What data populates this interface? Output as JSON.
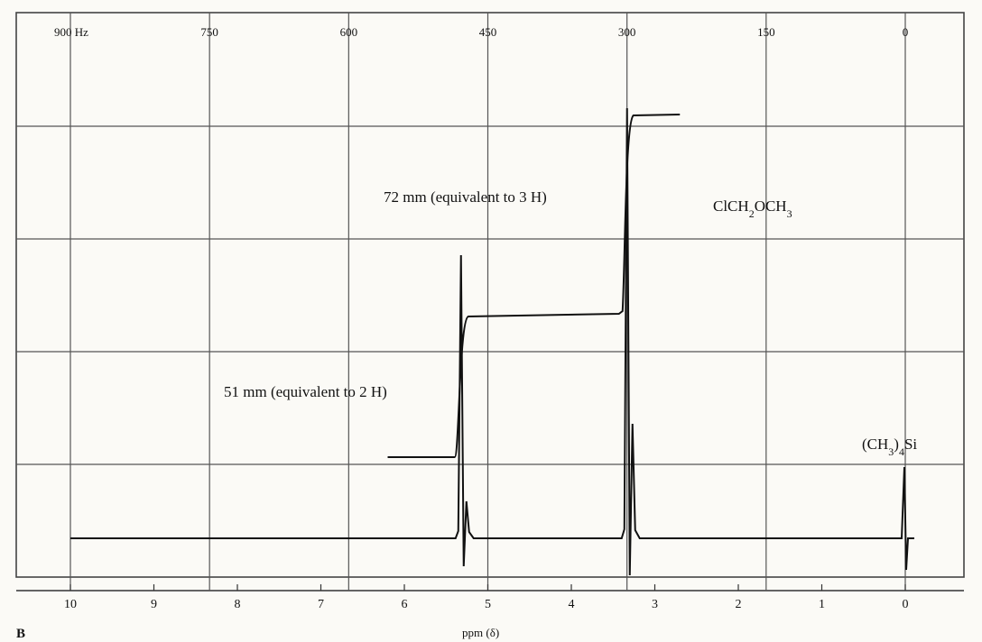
{
  "chart_data": {
    "type": "line",
    "panel_label": "B",
    "xlabel": "ppm (δ)",
    "xlim": [
      10,
      0
    ],
    "x_ticks_ppm": [
      "10",
      "9",
      "8",
      "7",
      "6",
      "5",
      "4",
      "3",
      "2",
      "1",
      "0"
    ],
    "x_ticks_hz": [
      "900 Hz",
      "750",
      "600",
      "450",
      "300",
      "150",
      "0"
    ],
    "grid": true,
    "peaks": [
      {
        "ppm": 5.3,
        "label": "51 mm (equivalent to 2 H)",
        "integral_mm": 51,
        "protons": 2
      },
      {
        "ppm": 3.3,
        "label": "72 mm (equivalent to 3 H)",
        "integral_mm": 72,
        "protons": 3
      },
      {
        "ppm": 0.0,
        "label": "(CH3)4Si"
      }
    ],
    "compound": "ClCH2OCH3",
    "integral_trace": {
      "start_ppm": 6.2,
      "end_ppm": 2.7,
      "step_heights_mm": [
        51,
        72
      ]
    },
    "colors": {
      "ink": "#111111",
      "paper": "#fbfaf6",
      "grid": "#555555"
    }
  }
}
